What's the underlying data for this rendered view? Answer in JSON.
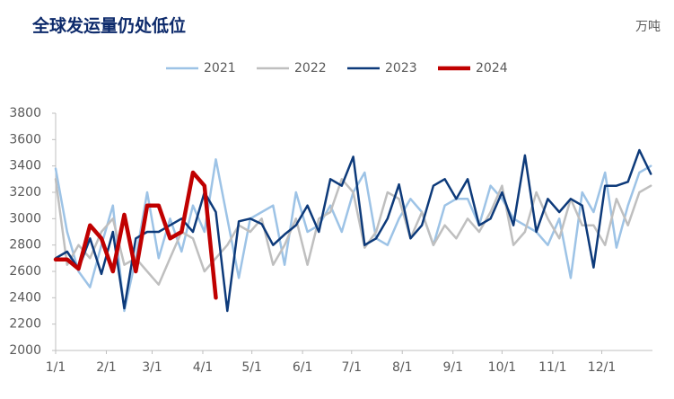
{
  "chart_data": {
    "type": "line",
    "title": "全球发运量仍处低位",
    "unit": "万吨",
    "x": [
      0,
      7,
      14,
      21,
      28,
      35,
      42,
      49,
      56,
      63,
      70,
      77,
      84,
      91,
      98,
      105,
      112,
      119,
      126,
      133,
      140,
      147,
      154,
      161,
      168,
      175,
      182,
      189,
      196,
      203,
      210,
      217,
      224,
      231,
      238,
      245,
      252,
      259,
      266,
      273,
      280,
      287,
      294,
      301,
      308,
      315,
      322,
      329,
      336,
      343,
      350,
      357,
      364
    ],
    "xlim": [
      0,
      365
    ],
    "xticks": [
      {
        "value": 0,
        "label": "1/1"
      },
      {
        "value": 31,
        "label": "2/1"
      },
      {
        "value": 59,
        "label": "3/1"
      },
      {
        "value": 90,
        "label": "4/1"
      },
      {
        "value": 120,
        "label": "5/1"
      },
      {
        "value": 151,
        "label": "6/1"
      },
      {
        "value": 181,
        "label": "7/1"
      },
      {
        "value": 212,
        "label": "8/1"
      },
      {
        "value": 243,
        "label": "9/1"
      },
      {
        "value": 273,
        "label": "10/1"
      },
      {
        "value": 304,
        "label": "11/1"
      },
      {
        "value": 334,
        "label": "12/1"
      }
    ],
    "ylim": [
      2000,
      3800
    ],
    "yticks": [
      2000,
      2200,
      2400,
      2600,
      2800,
      3000,
      3200,
      3400,
      3600,
      3800
    ],
    "legend": "top",
    "series": [
      {
        "name": "2021",
        "color": "#9dc3e6",
        "width": 2.5,
        "values": [
          3380,
          2900,
          2600,
          2480,
          2800,
          3100,
          2300,
          2700,
          3200,
          2700,
          3000,
          2750,
          3100,
          2900,
          3450,
          3000,
          2550,
          3000,
          3050,
          3100,
          2650,
          3200,
          2900,
          2950,
          3100,
          2900,
          3200,
          3350,
          2850,
          2800,
          3000,
          3150,
          3050,
          2800,
          3100,
          3150,
          3150,
          2950,
          3250,
          3150,
          3000,
          2950,
          2900,
          2800,
          3000,
          2550,
          3200,
          3050,
          3350,
          2780,
          3100,
          3350,
          3400
        ]
      },
      {
        "name": "2022",
        "color": "#bfbfbf",
        "width": 2.5,
        "values": [
          3300,
          2650,
          2800,
          2700,
          2900,
          3000,
          2650,
          2700,
          2600,
          2500,
          2700,
          2900,
          2850,
          2600,
          2700,
          2800,
          2950,
          2900,
          3000,
          2650,
          2800,
          3000,
          2650,
          3000,
          3050,
          3300,
          3200,
          2780,
          2900,
          3200,
          3150,
          2850,
          3050,
          2800,
          2950,
          2850,
          3000,
          2900,
          3050,
          3250,
          2800,
          2900,
          3200,
          3000,
          2850,
          3150,
          2950,
          2950,
          2800,
          3150,
          2950,
          3200,
          3250
        ]
      },
      {
        "name": "2023",
        "color": "#0d3a7a",
        "width": 2.5,
        "values": [
          2700,
          2750,
          2620,
          2850,
          2580,
          2900,
          2320,
          2850,
          2900,
          2900,
          2950,
          3000,
          2900,
          3200,
          3050,
          2300,
          2980,
          3000,
          2960,
          2800,
          2880,
          2950,
          3100,
          2900,
          3300,
          3250,
          3470,
          2800,
          2850,
          3000,
          3260,
          2850,
          2950,
          3250,
          3300,
          3150,
          3300,
          2950,
          3000,
          3200,
          2950,
          3480,
          2900,
          3150,
          3050,
          3150,
          3100,
          2630,
          3250,
          3250,
          3280,
          3520,
          3340
        ]
      },
      {
        "name": "2024",
        "color": "#c00000",
        "width": 4.5,
        "values": [
          2690,
          2690,
          2620,
          2950,
          2850,
          2600,
          3030,
          2600,
          3100,
          3100,
          2850,
          2900,
          3350,
          3250,
          2400,
          null,
          null,
          null,
          null,
          null,
          null,
          null,
          null,
          null,
          null,
          null,
          null,
          null,
          null,
          null,
          null,
          null,
          null,
          null,
          null,
          null,
          null,
          null,
          null,
          null,
          null,
          null,
          null,
          null,
          null,
          null,
          null,
          null,
          null,
          null,
          null,
          null,
          null
        ]
      }
    ]
  }
}
